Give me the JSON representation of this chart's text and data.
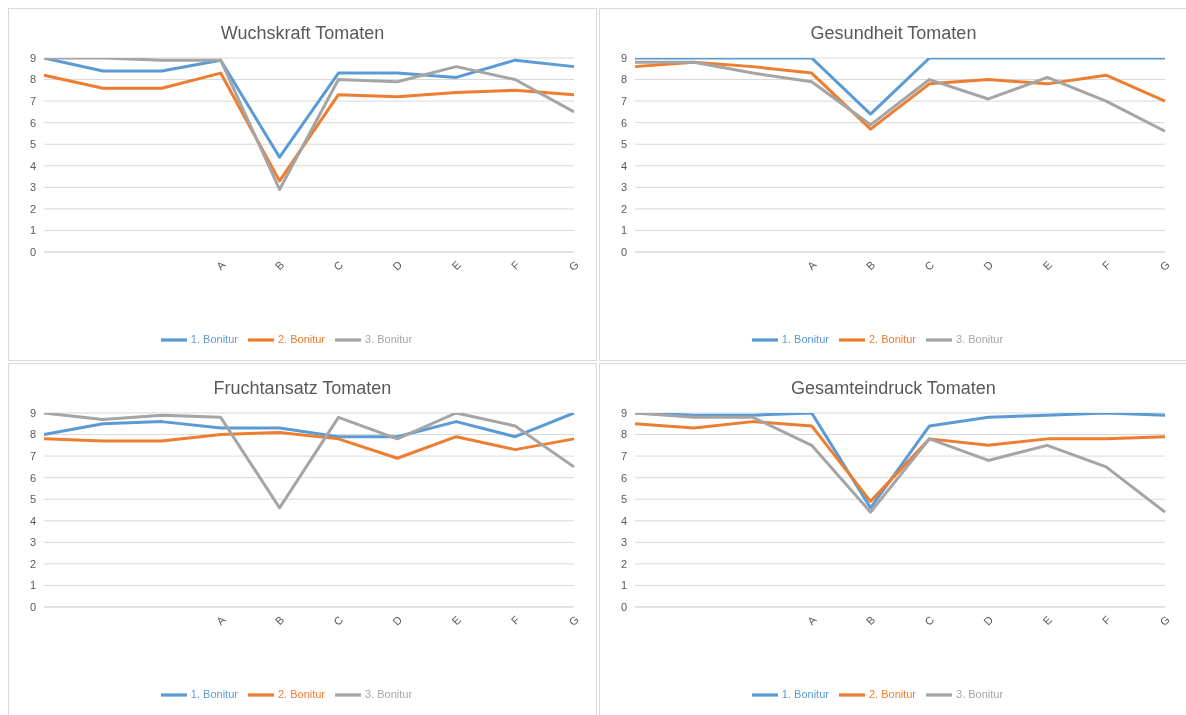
{
  "chart_data": [
    {
      "type": "line",
      "title": "Wuchskraft Tomaten",
      "categories": [
        null,
        null,
        null,
        "A",
        "B",
        "C",
        "D",
        "E",
        "F",
        "G"
      ],
      "ylim": [
        0,
        9
      ],
      "yticks": [
        0,
        1,
        2,
        3,
        4,
        5,
        6,
        7,
        8,
        9
      ],
      "grid": "y",
      "legend": "bottom",
      "marker": "none",
      "series": [
        {
          "name": "1. Bonitur",
          "color": "#5b9bd5",
          "values": [
            9,
            8.4,
            8.4,
            8.9,
            4.4,
            8.3,
            8.3,
            8.1,
            8.9,
            8.6
          ]
        },
        {
          "name": "2. Bonitur",
          "color": "#ed7d31",
          "values": [
            8.2,
            7.6,
            7.6,
            8.3,
            3.3,
            7.3,
            7.2,
            7.4,
            7.5,
            7.3
          ]
        },
        {
          "name": "3. Bonitur",
          "color": "#a5a5a5",
          "values": [
            9,
            9,
            8.9,
            8.9,
            2.9,
            8,
            7.9,
            8.6,
            8,
            6.5
          ]
        }
      ]
    },
    {
      "type": "line",
      "title": "Gesundheit Tomaten",
      "categories": [
        null,
        null,
        null,
        "A",
        "B",
        "C",
        "D",
        "E",
        "F",
        "G"
      ],
      "ylim": [
        0,
        9
      ],
      "yticks": [
        0,
        1,
        2,
        3,
        4,
        5,
        6,
        7,
        8,
        9
      ],
      "grid": "y",
      "legend": "bottom",
      "marker": "none",
      "series": [
        {
          "name": "1. Bonitur",
          "color": "#5b9bd5",
          "values": [
            9,
            9,
            9,
            9,
            6.4,
            9,
            9,
            9,
            9,
            9
          ]
        },
        {
          "name": "2. Bonitur",
          "color": "#ed7d31",
          "values": [
            8.6,
            8.8,
            8.6,
            8.3,
            5.7,
            7.8,
            8,
            7.8,
            8.2,
            7
          ]
        },
        {
          "name": "3. Bonitur",
          "color": "#a5a5a5",
          "values": [
            8.8,
            8.8,
            8.3,
            7.9,
            5.9,
            8,
            7.1,
            8.1,
            7,
            5.6
          ]
        }
      ]
    },
    {
      "type": "line",
      "title": "Fruchtansatz Tomaten",
      "categories": [
        null,
        null,
        null,
        "A",
        "B",
        "C",
        "D",
        "E",
        "F",
        "G"
      ],
      "ylim": [
        0,
        9
      ],
      "yticks": [
        0,
        1,
        2,
        3,
        4,
        5,
        6,
        7,
        8,
        9
      ],
      "grid": "y",
      "legend": "bottom",
      "marker": "none",
      "series": [
        {
          "name": "1. Bonitur",
          "color": "#5b9bd5",
          "values": [
            8,
            8.5,
            8.6,
            8.3,
            8.3,
            7.9,
            7.9,
            8.6,
            7.9,
            9
          ]
        },
        {
          "name": "2. Bonitur",
          "color": "#ed7d31",
          "values": [
            7.8,
            7.7,
            7.7,
            8,
            8.1,
            7.8,
            6.9,
            7.9,
            7.3,
            7.8
          ]
        },
        {
          "name": "3. Bonitur",
          "color": "#a5a5a5",
          "values": [
            9,
            8.7,
            8.9,
            8.8,
            4.6,
            8.8,
            7.8,
            9,
            8.4,
            6.5
          ]
        }
      ]
    },
    {
      "type": "line",
      "title": "Gesamteindruck Tomaten",
      "categories": [
        null,
        null,
        null,
        "A",
        "B",
        "C",
        "D",
        "E",
        "F",
        "G"
      ],
      "ylim": [
        0,
        9
      ],
      "yticks": [
        0,
        1,
        2,
        3,
        4,
        5,
        6,
        7,
        8,
        9
      ],
      "grid": "y",
      "legend": "bottom",
      "marker": "none",
      "series": [
        {
          "name": "1. Bonitur",
          "color": "#5b9bd5",
          "values": [
            9,
            8.9,
            8.9,
            9,
            4.6,
            8.4,
            8.8,
            8.9,
            9,
            8.9
          ]
        },
        {
          "name": "2. Bonitur",
          "color": "#ed7d31",
          "values": [
            8.5,
            8.3,
            8.6,
            8.4,
            4.9,
            7.8,
            7.5,
            7.8,
            7.8,
            7.9
          ]
        },
        {
          "name": "3. Bonitur",
          "color": "#a5a5a5",
          "values": [
            9,
            8.8,
            8.8,
            7.5,
            4.4,
            7.8,
            6.8,
            7.5,
            6.5,
            4.4
          ]
        }
      ]
    }
  ]
}
